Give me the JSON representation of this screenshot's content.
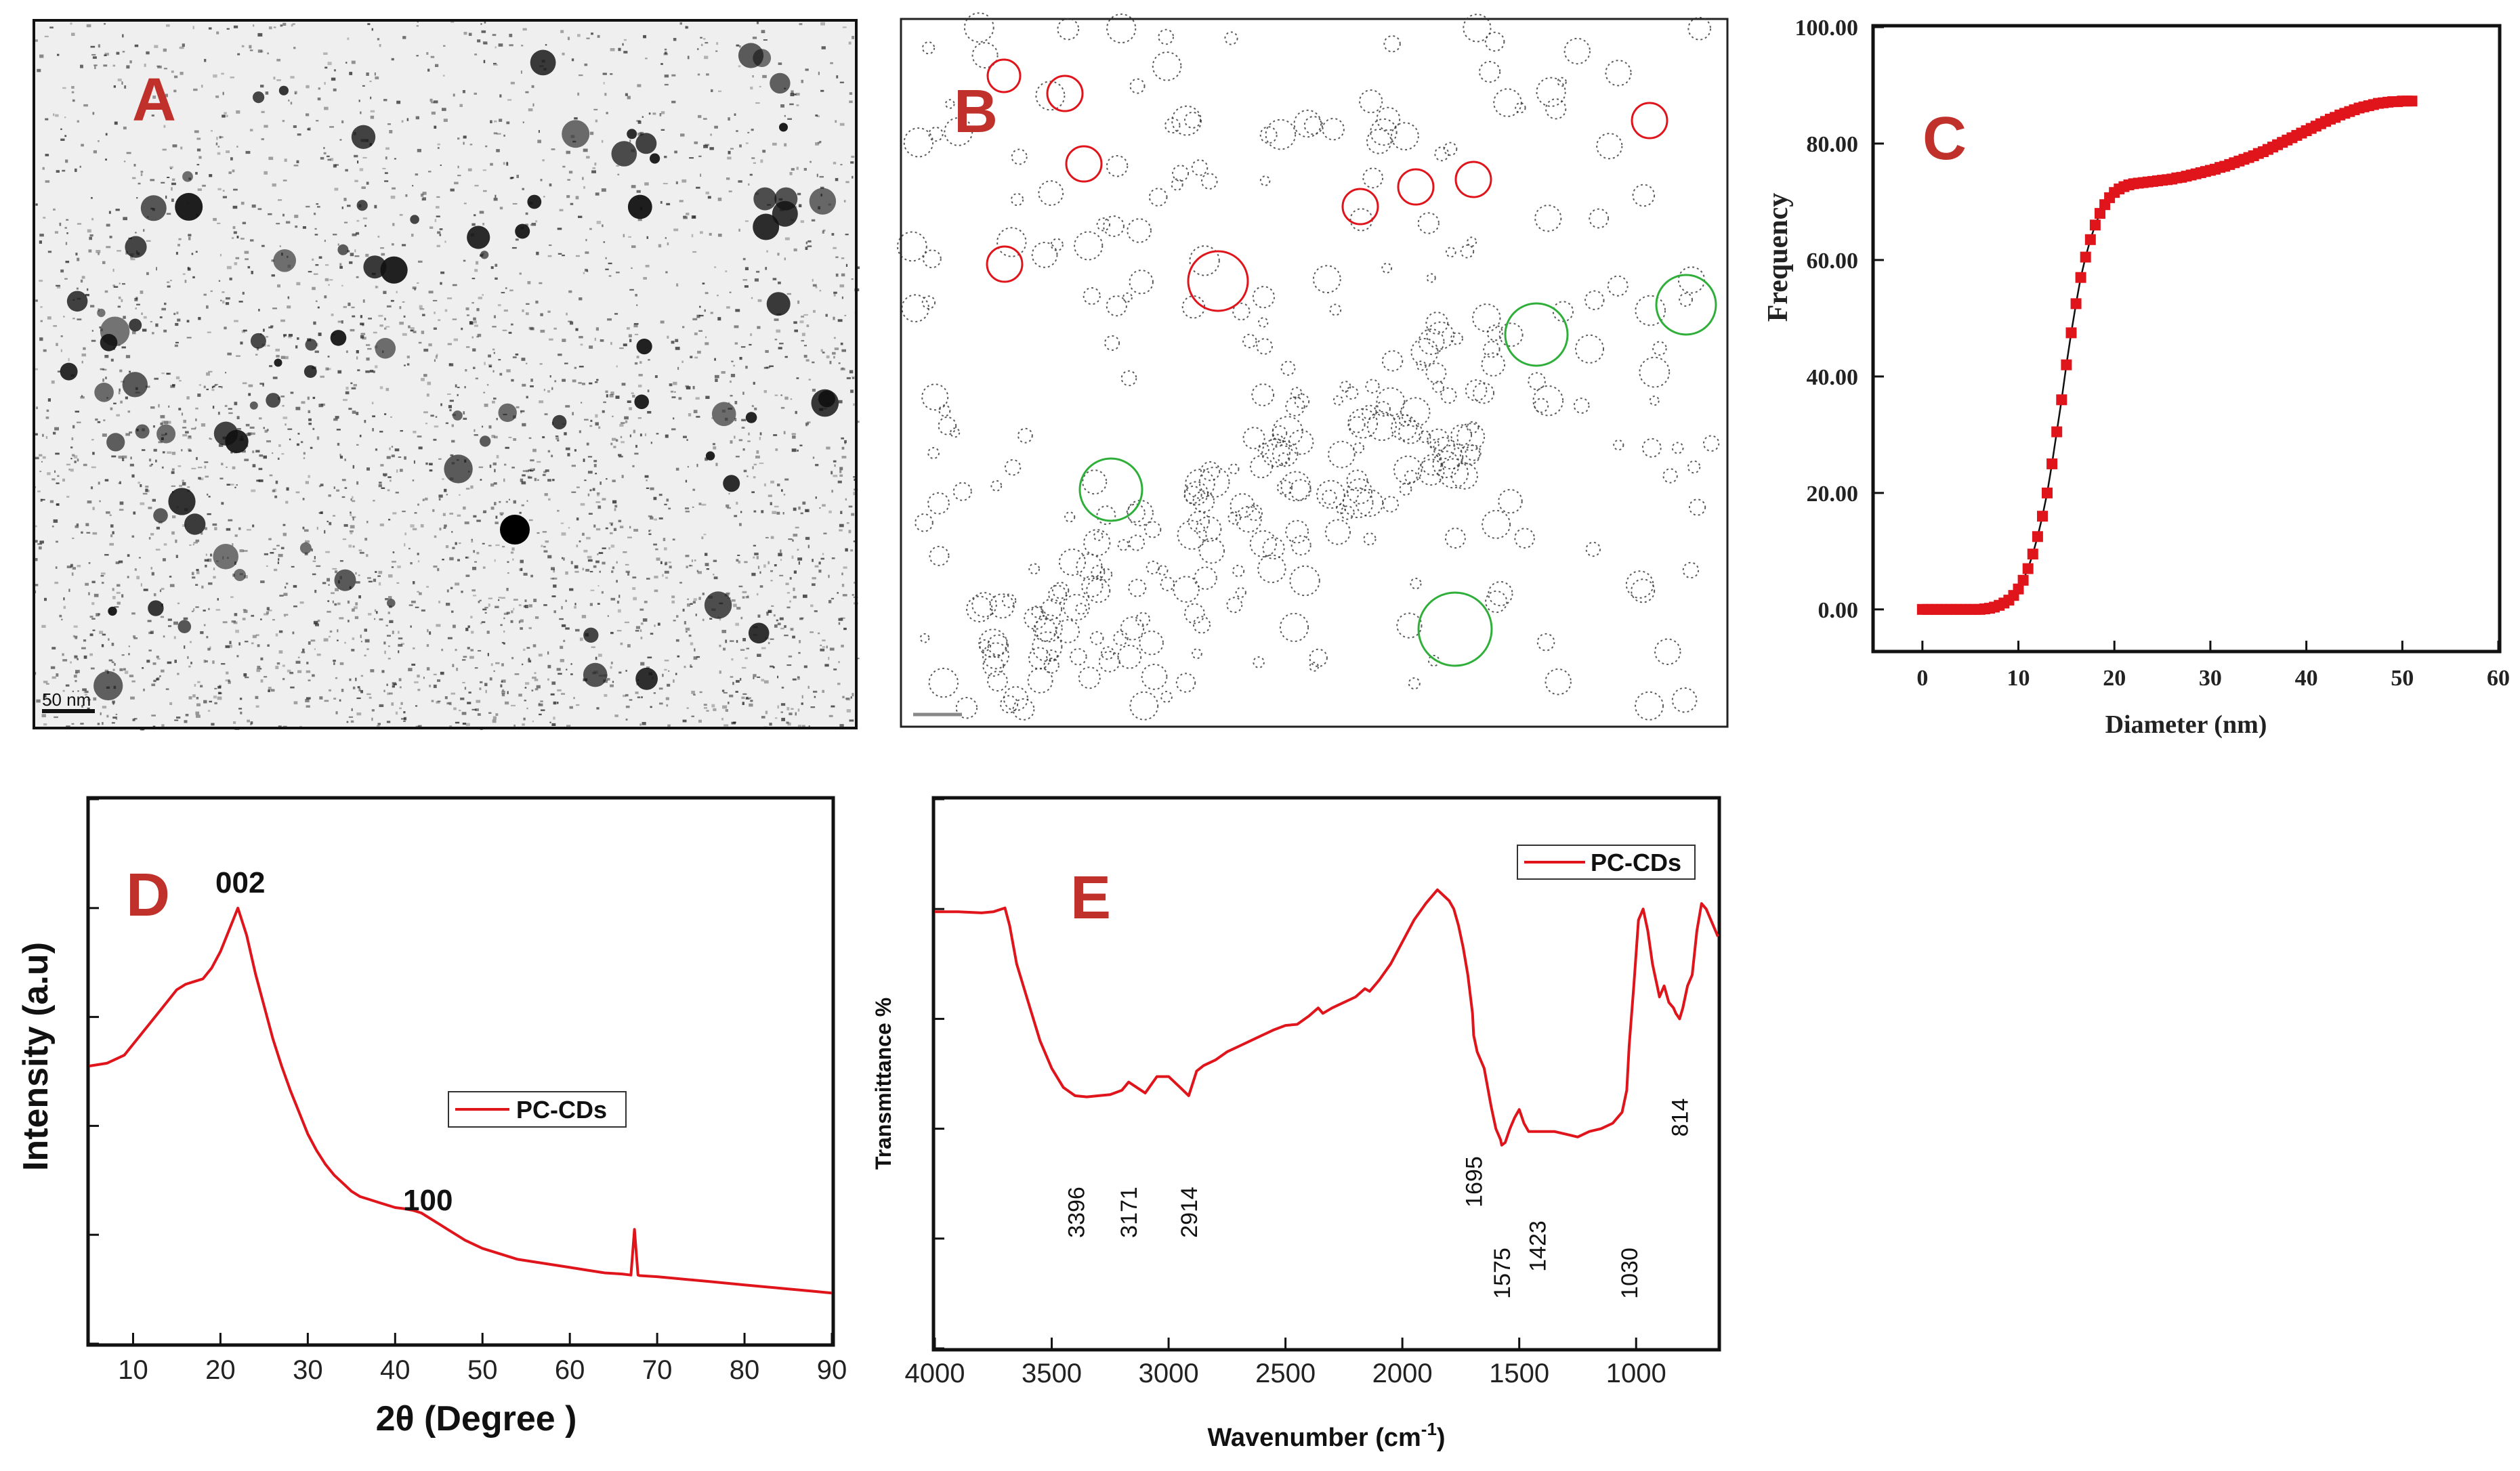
{
  "chart_data": [
    {
      "id": "A",
      "type": "image",
      "panel_label": "A",
      "scale_bar_label": "50 nm"
    },
    {
      "id": "B",
      "type": "image",
      "panel_label": "B"
    },
    {
      "id": "C",
      "type": "scatter",
      "panel_label": "C",
      "xlabel": "Diameter (nm)",
      "ylabel": "Frequency",
      "xlim": [
        -5,
        60
      ],
      "ylim": [
        -7,
        100
      ],
      "xticks": [
        "0",
        "10",
        "20",
        "30",
        "40",
        "50",
        "60"
      ],
      "yticks": [
        "0.00",
        "20.00",
        "40.00",
        "60.00",
        "80.00",
        "100.00"
      ],
      "series_color": "#e0141b",
      "x": [
        0,
        0.5,
        1,
        1.5,
        2,
        2.5,
        3,
        3.5,
        4,
        4.5,
        5,
        5.5,
        6,
        6.5,
        7,
        7.5,
        8,
        8.5,
        9,
        9.5,
        10,
        10.5,
        11,
        11.5,
        12,
        12.5,
        13,
        13.5,
        14,
        14.5,
        15,
        15.5,
        16,
        16.5,
        17,
        17.5,
        18,
        18.5,
        19,
        19.5,
        20,
        20.5,
        21,
        21.5,
        22,
        22.5,
        23,
        23.5,
        24,
        24.5,
        25,
        25.5,
        26,
        26.5,
        27,
        27.5,
        28,
        28.5,
        29,
        29.5,
        30,
        30.5,
        31,
        31.5,
        32,
        32.5,
        33,
        33.5,
        34,
        34.5,
        35,
        35.5,
        36,
        36.5,
        37,
        37.5,
        38,
        38.5,
        39,
        39.5,
        40,
        40.5,
        41,
        41.5,
        42,
        42.5,
        43,
        43.5,
        44,
        44.5,
        45,
        45.5,
        46,
        46.5,
        47,
        47.5,
        48,
        48.5,
        49,
        49.5,
        50,
        50.5,
        51
      ],
      "y": [
        0,
        0,
        0,
        0,
        0,
        0,
        0,
        0,
        0,
        0,
        0,
        0,
        0,
        0.1,
        0.2,
        0.4,
        0.7,
        1.1,
        1.6,
        2.4,
        3.5,
        5,
        7,
        9.5,
        12.5,
        16,
        20,
        25,
        30.5,
        36,
        42,
        47.5,
        52.5,
        57,
        60.5,
        63.5,
        66,
        68,
        69.5,
        70.7,
        71.6,
        72.2,
        72.6,
        72.9,
        73.1,
        73.2,
        73.3,
        73.4,
        73.5,
        73.6,
        73.7,
        73.8,
        73.9,
        74.1,
        74.2,
        74.4,
        74.6,
        74.8,
        75,
        75.2,
        75.4,
        75.6,
        75.9,
        76.1,
        76.4,
        76.7,
        77,
        77.3,
        77.6,
        77.9,
        78.3,
        78.6,
        79,
        79.4,
        79.8,
        80.2,
        80.6,
        81,
        81.4,
        81.8,
        82.2,
        82.6,
        83,
        83.4,
        83.8,
        84.2,
        84.5,
        84.9,
        85.2,
        85.5,
        85.8,
        86.1,
        86.3,
        86.5,
        86.7,
        86.9,
        87,
        87.1,
        87.2,
        87.2,
        87.3,
        87.3,
        87.3
      ]
    },
    {
      "id": "D",
      "type": "line",
      "panel_label": "D",
      "xlabel": "2θ (Degree )",
      "ylabel": "Intensity (a.u)",
      "xlim": [
        5,
        90
      ],
      "ylim": [
        0,
        100
      ],
      "xticks": [
        "10",
        "20",
        "30",
        "40",
        "50",
        "60",
        "70",
        "80",
        "90"
      ],
      "legend": "PC-CDs",
      "annotations": [
        "002",
        "100"
      ],
      "series_color": "#e0141b",
      "x": [
        5,
        7,
        9,
        11,
        13,
        15,
        16,
        17,
        18,
        19,
        20,
        21,
        22,
        23,
        24,
        25,
        26,
        27,
        28,
        29,
        30,
        31,
        32,
        33,
        34,
        35,
        36,
        37,
        38,
        39,
        40,
        41,
        42,
        43,
        44,
        45,
        46,
        47,
        48,
        50,
        52,
        54,
        56,
        58,
        60,
        62,
        64,
        66,
        67,
        67.4,
        67.8,
        68,
        70,
        72,
        74,
        76,
        78,
        80,
        82,
        84,
        86,
        88,
        90
      ],
      "y": [
        51,
        51.5,
        53,
        57,
        61,
        65,
        66,
        66.5,
        67,
        69,
        72,
        76,
        80,
        75,
        68,
        62,
        56,
        51,
        46.5,
        42.5,
        38.5,
        35.5,
        33,
        31,
        29.5,
        28,
        27,
        26.5,
        26,
        25.5,
        25,
        24.8,
        24.5,
        24,
        23,
        22,
        21,
        20,
        19,
        17.5,
        16.5,
        15.5,
        15,
        14.5,
        14,
        13.5,
        13,
        12.8,
        12.6,
        21,
        12.6,
        12.5,
        12.3,
        12,
        11.7,
        11.4,
        11.1,
        10.8,
        10.5,
        10.2,
        9.9,
        9.6,
        9.3
      ]
    },
    {
      "id": "E",
      "type": "line",
      "panel_label": "E",
      "xlabel": "Wavenumber (cm",
      "xlabel_sup": "-1",
      "xlabel_close": ")",
      "ylabel": "Transmittance %",
      "xlim": [
        4000,
        650
      ],
      "ylim": [
        0,
        100
      ],
      "xticks": [
        "4000",
        "3500",
        "3000",
        "2500",
        "2000",
        "1500",
        "1000"
      ],
      "legend": "PC-CDs",
      "annotations": [
        "3396",
        "3171",
        "2914",
        "1695",
        "1575",
        "1423",
        "1030",
        "814"
      ],
      "series_color": "#e0141b",
      "x": [
        4000,
        3900,
        3800,
        3750,
        3700,
        3680,
        3650,
        3600,
        3550,
        3500,
        3450,
        3400,
        3350,
        3300,
        3250,
        3200,
        3171,
        3100,
        3050,
        3000,
        2950,
        2914,
        2880,
        2850,
        2800,
        2750,
        2700,
        2650,
        2600,
        2550,
        2500,
        2450,
        2400,
        2360,
        2340,
        2300,
        2250,
        2200,
        2160,
        2140,
        2100,
        2050,
        2000,
        1950,
        1900,
        1850,
        1800,
        1780,
        1760,
        1740,
        1720,
        1700,
        1695,
        1680,
        1650,
        1620,
        1600,
        1580,
        1575,
        1560,
        1540,
        1520,
        1500,
        1480,
        1460,
        1440,
        1423,
        1400,
        1350,
        1300,
        1250,
        1200,
        1150,
        1100,
        1060,
        1040,
        1030,
        1010,
        990,
        970,
        950,
        930,
        920,
        910,
        900,
        880,
        860,
        840,
        830,
        814,
        800,
        780,
        760,
        740,
        720,
        700,
        680,
        660,
        650
      ],
      "y": [
        79.5,
        79.5,
        79.3,
        79.5,
        80.2,
        77,
        70,
        63,
        56,
        51,
        47.5,
        46,
        45.8,
        46,
        46.2,
        47,
        48.5,
        46.5,
        49.5,
        49.5,
        47.5,
        46,
        50.5,
        51.5,
        52.5,
        54,
        55,
        56,
        57,
        58,
        58.8,
        59,
        60.5,
        62,
        61,
        62,
        63,
        64,
        65.5,
        65,
        67,
        70,
        74,
        78,
        81,
        83.5,
        81.5,
        80,
        77,
        73,
        68,
        61,
        57,
        54,
        51,
        44,
        40,
        38,
        37,
        37.5,
        40,
        42,
        43.5,
        41,
        39.5,
        39.5,
        39.5,
        39.5,
        39.5,
        39,
        38.5,
        39.5,
        40,
        41,
        43,
        47,
        55,
        66,
        78,
        80,
        76,
        70,
        68,
        66,
        64,
        66,
        63,
        62,
        61,
        60,
        62,
        66,
        68,
        76,
        81,
        80,
        78,
        76,
        75
      ]
    }
  ]
}
